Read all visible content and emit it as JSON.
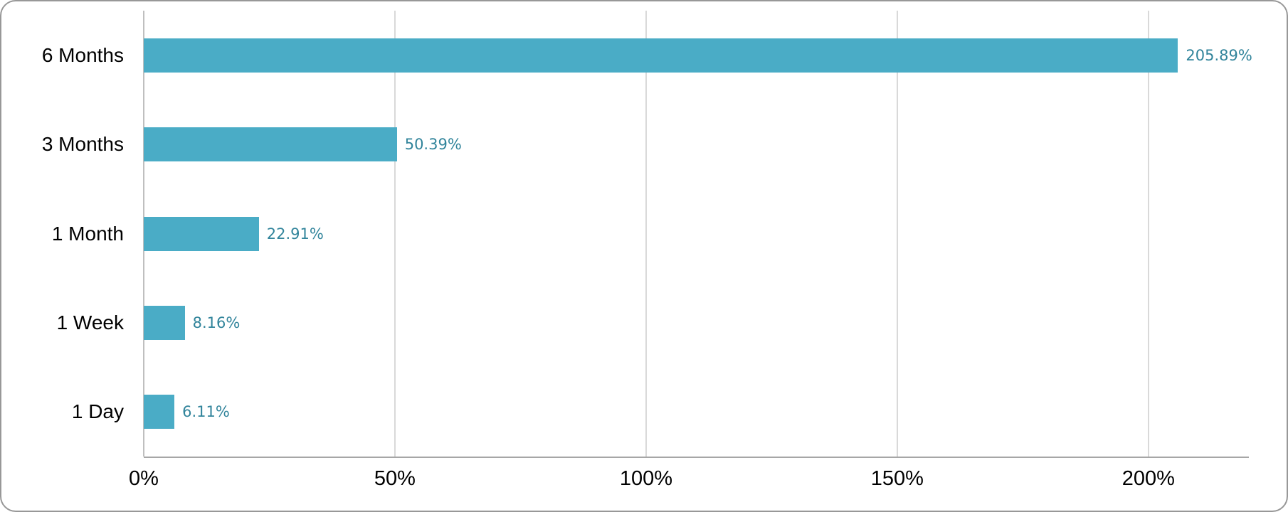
{
  "chart_data": {
    "type": "bar",
    "orientation": "horizontal",
    "title": "",
    "xlabel": "",
    "ylabel": "",
    "categories": [
      "6 Months",
      "3 Months",
      "1 Month",
      "1 Week",
      "1 Day"
    ],
    "values": [
      205.89,
      50.39,
      22.91,
      8.16,
      6.11
    ],
    "value_labels": [
      "205.89%",
      "50.39%",
      "22.91%",
      "8.16%",
      "6.11%"
    ],
    "xlim": [
      0,
      220
    ],
    "xticks": [
      0,
      50,
      100,
      150,
      200
    ],
    "xtick_labels": [
      "0%",
      "50%",
      "100%",
      "150%",
      "200%"
    ],
    "grid": "vertical-only",
    "legend": "none",
    "colors": {
      "bar": "#4AACC6",
      "value_label": "#31849B",
      "axis_text": "#000000",
      "gridline": "#D9D9D9",
      "zero_axis_line": "#BFBFBF",
      "bottom_axis_line": "#A6A6A6",
      "card_border": "#989898",
      "background": "#FFFFFF"
    }
  }
}
